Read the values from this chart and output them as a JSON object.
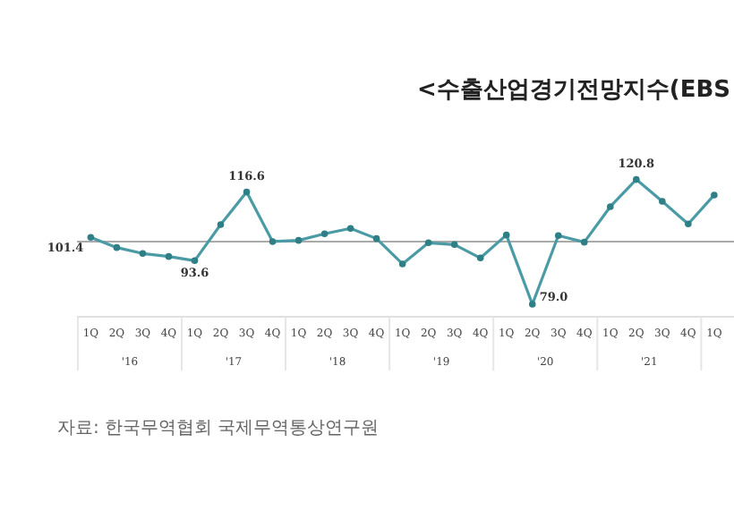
{
  "chart_data": {
    "type": "line",
    "title": "<수출산업경기전망지수(EBS",
    "categories": [
      "1Q",
      "2Q",
      "3Q",
      "4Q",
      "1Q",
      "2Q",
      "3Q",
      "4Q",
      "1Q",
      "2Q",
      "3Q",
      "4Q",
      "1Q",
      "2Q",
      "3Q",
      "4Q",
      "1Q",
      "2Q",
      "3Q",
      "4Q",
      "1Q",
      "2Q",
      "3Q",
      "4Q",
      "1Q"
    ],
    "series": [
      {
        "color": "#4a9ba5",
        "values": [
          101.4,
          98.0,
          96.0,
          95.0,
          93.6,
          105.7,
          116.6,
          100.0,
          100.4,
          102.6,
          104.4,
          101.0,
          92.5,
          99.6,
          99.0,
          94.5,
          102.2,
          79.0,
          102.0,
          99.8,
          111.7,
          120.8,
          113.5,
          105.9,
          115.6
        ],
        "value_labels": [
          "101.4",
          null,
          null,
          null,
          "93.6",
          null,
          "116.6",
          null,
          null,
          null,
          null,
          null,
          null,
          null,
          null,
          null,
          null,
          "79.0",
          null,
          null,
          null,
          "120.8",
          null,
          null,
          null
        ]
      }
    ],
    "tick_labels": "x",
    "marker": "circle",
    "line_style": "solid",
    "ref_lines": [
      {
        "axis": "y",
        "value": 100,
        "color": "#aaaaaa"
      }
    ],
    "annotations": [
      "'16",
      "'17",
      "'18",
      "'19",
      "'20",
      "'21",
      "자료: 한국무역협회 국제무역통상연구원"
    ]
  }
}
